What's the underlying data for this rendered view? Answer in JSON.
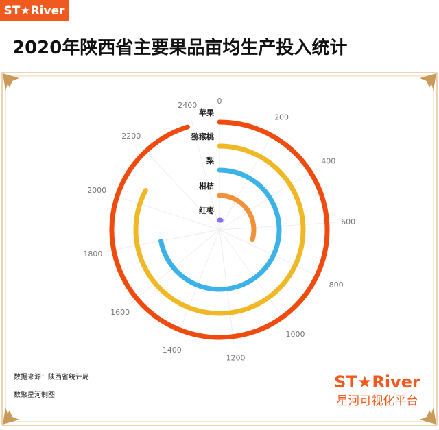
{
  "header": {
    "logo": "ST★River",
    "title": "2020年陕西省主要果品亩均生产投入统计"
  },
  "chart_data": {
    "type": "radial-bar",
    "categories": [
      "苹果",
      "猕猴桃",
      "梨",
      "柑桔",
      "红枣"
    ],
    "values": [
      2380,
      2070,
      1800,
      743,
      60
    ],
    "colors": [
      "#f04a0f",
      "#f1b825",
      "#3bb3e8",
      "#f2913a",
      "#8c6ee8"
    ],
    "xlim": [
      0,
      2500
    ],
    "xticks": [
      0,
      200,
      400,
      600,
      800,
      1000,
      1200,
      1400,
      1600,
      1800,
      2000,
      2200,
      2400
    ],
    "grid": true
  },
  "footer": {
    "source": "数据来源：陕西省统计局",
    "credit": "数聚星河制图",
    "logo": "ST★River",
    "platform": "星河可视化平台"
  }
}
